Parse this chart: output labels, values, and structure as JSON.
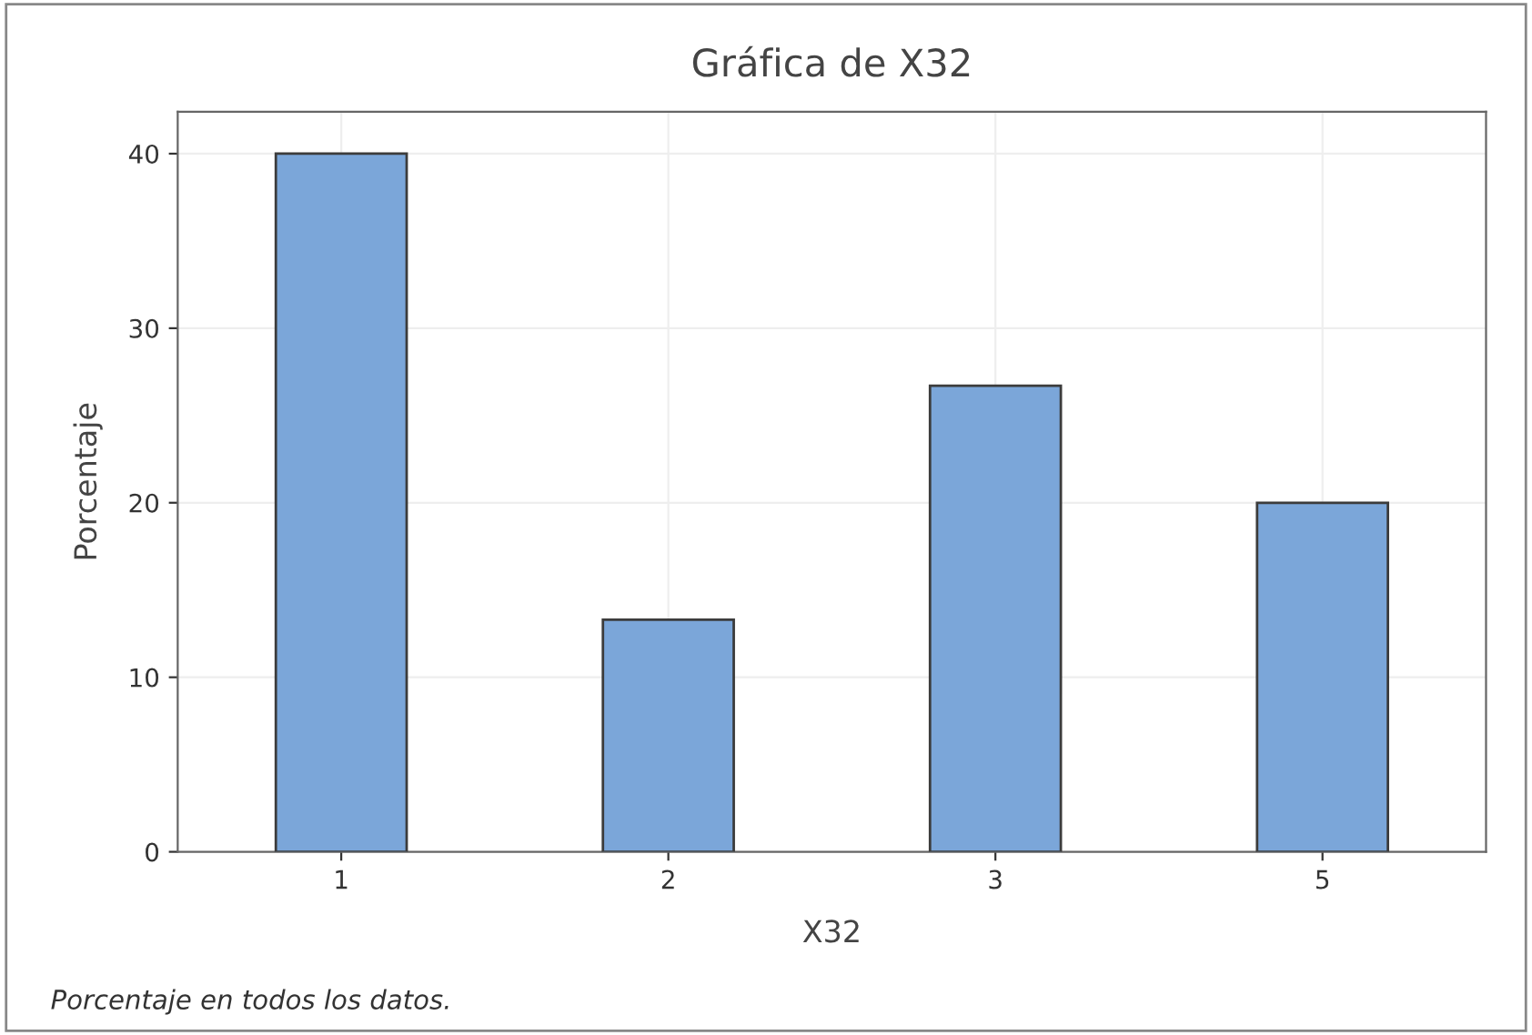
{
  "chart_data": {
    "type": "bar",
    "title": "Gráfica de X32",
    "xlabel": "X32",
    "ylabel": "Porcentaje",
    "categories": [
      "1",
      "2",
      "3",
      "5"
    ],
    "values": [
      40,
      13.3,
      26.7,
      20
    ],
    "color": "#7ba6d9",
    "ylim": [
      0,
      42.4
    ],
    "yticks": [
      0,
      10,
      20,
      30,
      40
    ],
    "grid": true,
    "annotations": [
      "Porcentaje en todos los datos."
    ]
  }
}
